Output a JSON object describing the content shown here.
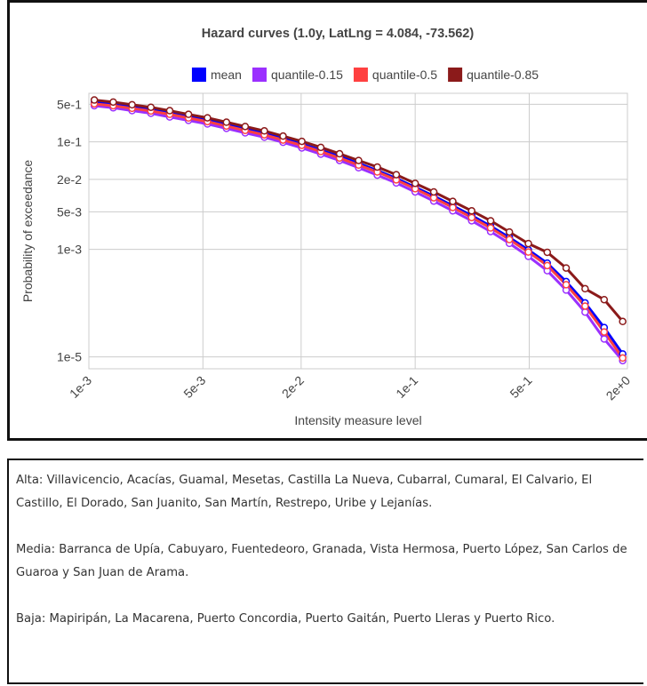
{
  "chart_data": {
    "type": "line",
    "title": "Hazard curves (1.0y, LatLng = 4.084, -73.562)",
    "x_label": "Intensity measure level",
    "y_label": "Probability of exceedance",
    "xscale": "log",
    "yscale": "log",
    "grid": true,
    "legend": "top",
    "xlim": [
      0.001,
      2
    ],
    "ylim": [
      6e-06,
      0.8
    ],
    "xticks": [
      {
        "value": 0.001,
        "label": "1e-3"
      },
      {
        "value": 0.005,
        "label": "5e-3"
      },
      {
        "value": 0.02,
        "label": "2e-2"
      },
      {
        "value": 0.1,
        "label": "1e-1"
      },
      {
        "value": 0.5,
        "label": "5e-1"
      },
      {
        "value": 2,
        "label": "2e+0"
      }
    ],
    "yticks": [
      {
        "value": 0.5,
        "label": "5e-1"
      },
      {
        "value": 0.1,
        "label": "1e-1"
      },
      {
        "value": 0.02,
        "label": "2e-2"
      },
      {
        "value": 0.005,
        "label": "5e-3"
      },
      {
        "value": 0.001,
        "label": "1e-3"
      },
      {
        "value": 1e-05,
        "label": "1e-5"
      }
    ],
    "x": [
      0.00108,
      0.00141,
      0.00184,
      0.0024,
      0.00313,
      0.00408,
      0.00533,
      0.00697,
      0.00908,
      0.0119,
      0.0155,
      0.0202,
      0.0264,
      0.0344,
      0.045,
      0.0586,
      0.0766,
      0.1,
      0.13,
      0.17,
      0.222,
      0.29,
      0.378,
      0.494,
      0.645,
      0.842,
      1.1,
      1.44,
      1.87
    ],
    "series": [
      {
        "name": "mean",
        "color": "#0000ff",
        "values": [
          0.54,
          0.5,
          0.447,
          0.398,
          0.343,
          0.294,
          0.253,
          0.209,
          0.173,
          0.144,
          0.115,
          0.0912,
          0.07,
          0.0537,
          0.0397,
          0.0293,
          0.0209,
          0.0143,
          0.0098,
          0.00646,
          0.00426,
          0.00271,
          0.00166,
          0.000977,
          0.000554,
          0.000251,
          0.000101,
          3.51e-05,
          1.13e-05
        ]
      },
      {
        "name": "quantile-0.15",
        "color": "#9b30ff",
        "values": [
          0.47,
          0.43,
          0.38,
          0.34,
          0.29,
          0.25,
          0.215,
          0.178,
          0.147,
          0.122,
          0.098,
          0.077,
          0.059,
          0.045,
          0.033,
          0.024,
          0.0172,
          0.0117,
          0.0079,
          0.0052,
          0.0034,
          0.00214,
          0.00129,
          0.00074,
          0.0004,
          0.000175,
          6.8e-05,
          2.15e-05,
          8.5e-06
        ]
      },
      {
        "name": "quantile-0.5",
        "color": "#ff4040",
        "values": [
          0.51,
          0.47,
          0.42,
          0.375,
          0.325,
          0.278,
          0.238,
          0.197,
          0.163,
          0.135,
          0.108,
          0.086,
          0.066,
          0.05,
          0.037,
          0.0275,
          0.0196,
          0.0134,
          0.0091,
          0.006,
          0.0039,
          0.0025,
          0.00152,
          0.00089,
          0.0005,
          0.00022,
          8.8e-05,
          2.9e-05,
          9.5e-06
        ]
      },
      {
        "name": "quantile-0.85",
        "color": "#8b1a1a",
        "values": [
          0.6,
          0.55,
          0.49,
          0.44,
          0.38,
          0.325,
          0.28,
          0.232,
          0.193,
          0.16,
          0.128,
          0.102,
          0.079,
          0.06,
          0.045,
          0.034,
          0.0245,
          0.0169,
          0.0117,
          0.0078,
          0.0052,
          0.0034,
          0.0021,
          0.00128,
          0.00088,
          0.00045,
          0.000185,
          0.000116,
          4.55e-05
        ]
      }
    ]
  },
  "panel": {
    "paragraphs": [
      "Alta: Villavicencio, Acacías, Guamal, Mesetas, Castilla La Nueva, Cubarral, Cumaral, El Calvario, El Castillo, El Dorado, San Juanito, San Martín, Restrepo, Uribe y Lejanías.",
      "Media: Barranca de Upía, Cabuyaro, Fuentedeoro, Granada, Vista Hermosa, Puerto López, San Carlos de Guaroa y San Juan de Arama.",
      "Baja: Mapiripán, La Macarena, Puerto Concordia, Puerto Gaitán, Puerto Lleras y Puerto Rico."
    ]
  }
}
